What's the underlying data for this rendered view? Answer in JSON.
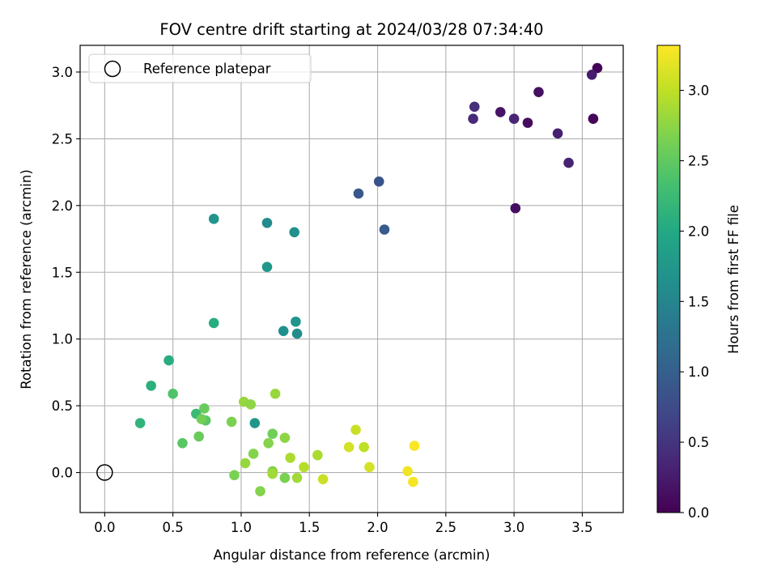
{
  "chart_data": {
    "type": "scatter",
    "title": "FOV centre drift starting at 2024/03/28 07:34:40",
    "xlabel": "Angular distance from reference (arcmin)",
    "ylabel": "Rotation from reference (arcmin)",
    "xlim": [
      -0.18,
      3.8
    ],
    "ylim": [
      -0.3,
      3.2
    ],
    "xticks": [
      "0.0",
      "0.5",
      "1.0",
      "1.5",
      "2.0",
      "2.5",
      "3.0",
      "3.5"
    ],
    "yticks": [
      "0.0",
      "0.5",
      "1.0",
      "1.5",
      "2.0",
      "2.5",
      "3.0"
    ],
    "grid": true,
    "legend": {
      "position": "top-left",
      "entries": [
        "Reference platepar"
      ]
    },
    "reference_point": {
      "x": 0.0,
      "y": 0.0
    },
    "colorbar": {
      "label": "Hours from first FF file",
      "colormap": "viridis",
      "range": [
        0.0,
        3.32
      ],
      "ticks": [
        "0.0",
        "0.5",
        "1.0",
        "1.5",
        "2.0",
        "2.5",
        "3.0"
      ]
    },
    "points": [
      {
        "x": 3.61,
        "y": 3.03,
        "c": 0.03
      },
      {
        "x": 3.57,
        "y": 2.98,
        "c": 0.25
      },
      {
        "x": 3.58,
        "y": 2.65,
        "c": 0.05
      },
      {
        "x": 3.18,
        "y": 2.85,
        "c": 0.15
      },
      {
        "x": 3.1,
        "y": 2.62,
        "c": 0.1
      },
      {
        "x": 3.0,
        "y": 2.65,
        "c": 0.35
      },
      {
        "x": 2.9,
        "y": 2.7,
        "c": 0.18
      },
      {
        "x": 2.71,
        "y": 2.74,
        "c": 0.45
      },
      {
        "x": 2.7,
        "y": 2.65,
        "c": 0.4
      },
      {
        "x": 3.32,
        "y": 2.54,
        "c": 0.28
      },
      {
        "x": 3.4,
        "y": 2.32,
        "c": 0.32
      },
      {
        "x": 3.01,
        "y": 1.98,
        "c": 0.12
      },
      {
        "x": 2.01,
        "y": 2.18,
        "c": 0.85
      },
      {
        "x": 1.86,
        "y": 2.09,
        "c": 0.9
      },
      {
        "x": 2.05,
        "y": 1.82,
        "c": 0.95
      },
      {
        "x": 0.8,
        "y": 1.9,
        "c": 1.7
      },
      {
        "x": 1.19,
        "y": 1.87,
        "c": 1.6
      },
      {
        "x": 1.39,
        "y": 1.8,
        "c": 1.65
      },
      {
        "x": 1.19,
        "y": 1.54,
        "c": 1.75
      },
      {
        "x": 0.8,
        "y": 1.12,
        "c": 2.05
      },
      {
        "x": 1.4,
        "y": 1.13,
        "c": 1.7
      },
      {
        "x": 1.31,
        "y": 1.06,
        "c": 1.65
      },
      {
        "x": 1.41,
        "y": 1.04,
        "c": 1.6
      },
      {
        "x": 1.1,
        "y": 0.37,
        "c": 1.75
      },
      {
        "x": 0.47,
        "y": 0.84,
        "c": 2.05
      },
      {
        "x": 0.34,
        "y": 0.65,
        "c": 2.1
      },
      {
        "x": 0.5,
        "y": 0.59,
        "c": 2.4
      },
      {
        "x": 0.26,
        "y": 0.37,
        "c": 2.15
      },
      {
        "x": 0.67,
        "y": 0.44,
        "c": 2.25
      },
      {
        "x": 0.73,
        "y": 0.48,
        "c": 2.55
      },
      {
        "x": 0.74,
        "y": 0.39,
        "c": 2.45
      },
      {
        "x": 0.71,
        "y": 0.4,
        "c": 2.6
      },
      {
        "x": 0.57,
        "y": 0.22,
        "c": 2.45
      },
      {
        "x": 0.69,
        "y": 0.27,
        "c": 2.55
      },
      {
        "x": 0.93,
        "y": 0.38,
        "c": 2.65
      },
      {
        "x": 1.02,
        "y": 0.53,
        "c": 2.8
      },
      {
        "x": 1.07,
        "y": 0.51,
        "c": 2.75
      },
      {
        "x": 1.25,
        "y": 0.59,
        "c": 2.8
      },
      {
        "x": 0.95,
        "y": -0.02,
        "c": 2.65
      },
      {
        "x": 1.03,
        "y": 0.07,
        "c": 2.8
      },
      {
        "x": 1.09,
        "y": 0.14,
        "c": 2.7
      },
      {
        "x": 1.2,
        "y": 0.22,
        "c": 2.7
      },
      {
        "x": 1.23,
        "y": 0.29,
        "c": 2.6
      },
      {
        "x": 1.32,
        "y": 0.26,
        "c": 2.75
      },
      {
        "x": 1.23,
        "y": 0.01,
        "c": 2.7
      },
      {
        "x": 1.23,
        "y": -0.01,
        "c": 2.85
      },
      {
        "x": 1.32,
        "y": -0.04,
        "c": 2.65
      },
      {
        "x": 1.14,
        "y": -0.14,
        "c": 2.7
      },
      {
        "x": 1.36,
        "y": 0.11,
        "c": 2.9
      },
      {
        "x": 1.41,
        "y": -0.04,
        "c": 2.85
      },
      {
        "x": 1.46,
        "y": 0.04,
        "c": 2.95
      },
      {
        "x": 1.56,
        "y": 0.13,
        "c": 2.9
      },
      {
        "x": 1.6,
        "y": -0.05,
        "c": 3.05
      },
      {
        "x": 1.79,
        "y": 0.19,
        "c": 3.1
      },
      {
        "x": 1.84,
        "y": 0.32,
        "c": 3.05
      },
      {
        "x": 1.9,
        "y": 0.19,
        "c": 3.0
      },
      {
        "x": 1.94,
        "y": 0.04,
        "c": 3.1
      },
      {
        "x": 2.22,
        "y": 0.01,
        "c": 3.25
      },
      {
        "x": 2.27,
        "y": 0.2,
        "c": 3.3
      },
      {
        "x": 2.26,
        "y": -0.07,
        "c": 3.28
      }
    ]
  }
}
